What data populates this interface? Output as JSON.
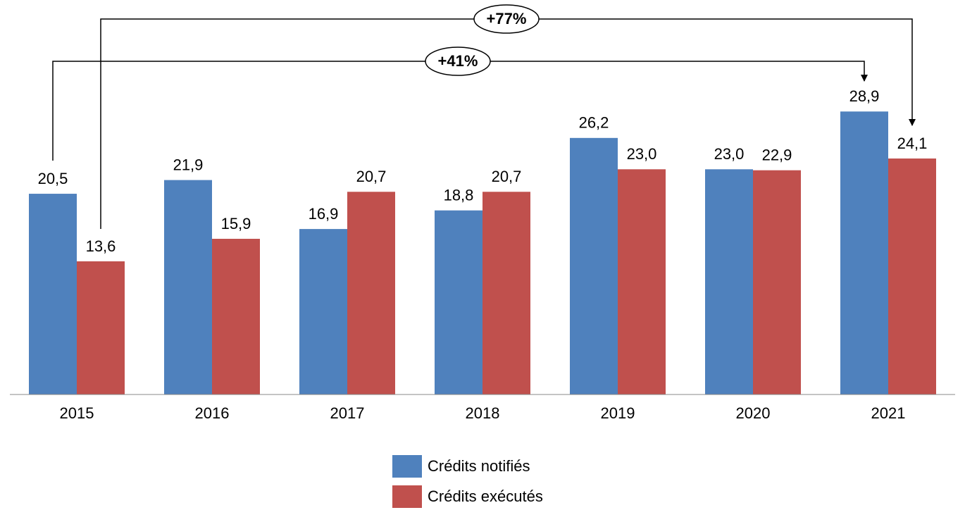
{
  "chart_data": {
    "type": "bar",
    "categories": [
      "2015",
      "2016",
      "2017",
      "2018",
      "2019",
      "2020",
      "2021"
    ],
    "series": [
      {
        "name": "Crédits notifiés",
        "color": "#4f81bd",
        "values": [
          20.5,
          21.9,
          16.9,
          18.8,
          26.2,
          23.0,
          28.9
        ],
        "value_labels": [
          "20,5",
          "21,9",
          "16,9",
          "18,8",
          "26,2",
          "23,0",
          "28,9"
        ]
      },
      {
        "name": "Crédits exécutés",
        "color": "#c0504d",
        "values": [
          13.6,
          15.9,
          20.7,
          20.7,
          23.0,
          22.9,
          24.1
        ],
        "value_labels": [
          "13,6",
          "15,9",
          "20,7",
          "20,7",
          "23,0",
          "22,9",
          "24,1"
        ]
      }
    ],
    "annotations": [
      "+77%",
      "+41%"
    ]
  }
}
